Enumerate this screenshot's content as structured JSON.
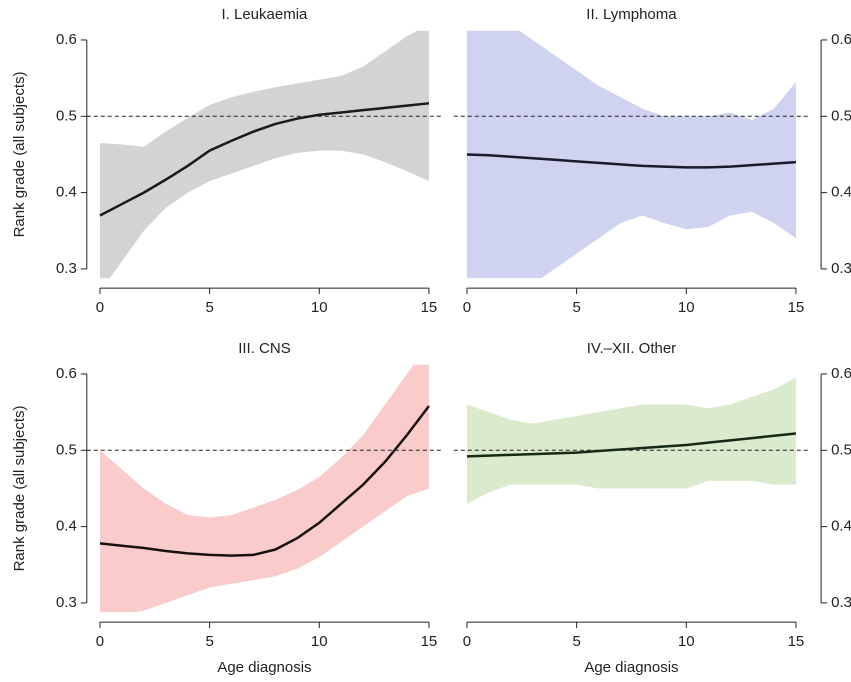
{
  "chart_data": [
    {
      "type": "line",
      "title": "I. Leukaemia",
      "ylabel": "Rank grade (all subjects)",
      "yaxis_side": "left",
      "x": [
        0,
        1,
        2,
        3,
        4,
        5,
        6,
        7,
        8,
        9,
        10,
        11,
        12,
        13,
        14,
        15
      ],
      "values": [
        0.37,
        0.385,
        0.4,
        0.417,
        0.435,
        0.455,
        0.468,
        0.48,
        0.49,
        0.497,
        0.502,
        0.505,
        0.508,
        0.511,
        0.514,
        0.517
      ],
      "upper": [
        0.465,
        0.463,
        0.46,
        0.48,
        0.498,
        0.515,
        0.525,
        0.532,
        0.538,
        0.543,
        0.548,
        0.553,
        0.565,
        0.585,
        0.605,
        0.62
      ],
      "lower": [
        0.27,
        0.31,
        0.35,
        0.38,
        0.4,
        0.415,
        0.425,
        0.435,
        0.445,
        0.452,
        0.455,
        0.455,
        0.45,
        0.44,
        0.428,
        0.415
      ],
      "color": "#1a1a1a",
      "band_color": "#d3d3d3",
      "hline": 0.5,
      "xlim": [
        -0.6,
        15.6
      ],
      "xticks": [
        0,
        5,
        10,
        15
      ],
      "ylim": [
        0.288,
        0.612
      ],
      "yticks": [
        0.3,
        0.4,
        0.5,
        0.6
      ]
    },
    {
      "type": "line",
      "title": "II. Lymphoma",
      "yaxis_side": "right",
      "x": [
        0,
        1,
        2,
        3,
        4,
        5,
        6,
        7,
        8,
        9,
        10,
        11,
        12,
        13,
        14,
        15
      ],
      "values": [
        0.45,
        0.449,
        0.447,
        0.445,
        0.443,
        0.441,
        0.439,
        0.437,
        0.435,
        0.434,
        0.433,
        0.433,
        0.434,
        0.436,
        0.438,
        0.44
      ],
      "upper": [
        0.62,
        0.63,
        0.62,
        0.6,
        0.58,
        0.56,
        0.54,
        0.525,
        0.51,
        0.5,
        0.5,
        0.5,
        0.505,
        0.495,
        0.51,
        0.545
      ],
      "lower": [
        0.28,
        0.27,
        0.26,
        0.28,
        0.3,
        0.32,
        0.34,
        0.36,
        0.37,
        0.36,
        0.352,
        0.355,
        0.37,
        0.375,
        0.36,
        0.34
      ],
      "color": "#1a1a2a",
      "band_color": "#cfd3ef",
      "hline": 0.5,
      "xlim": [
        -0.6,
        15.6
      ],
      "xticks": [
        0,
        5,
        10,
        15
      ],
      "ylim": [
        0.288,
        0.612
      ],
      "yticks": [
        0.3,
        0.4,
        0.5,
        0.6
      ]
    },
    {
      "type": "line",
      "title": "III. CNS",
      "xlabel": "Age diagnosis",
      "ylabel": "Rank grade (all subjects)",
      "yaxis_side": "left",
      "x": [
        0,
        1,
        2,
        3,
        4,
        5,
        6,
        7,
        8,
        9,
        10,
        11,
        12,
        13,
        14,
        15
      ],
      "values": [
        0.378,
        0.375,
        0.372,
        0.368,
        0.365,
        0.363,
        0.362,
        0.363,
        0.37,
        0.385,
        0.405,
        0.43,
        0.455,
        0.485,
        0.52,
        0.558
      ],
      "upper": [
        0.5,
        0.475,
        0.45,
        0.43,
        0.415,
        0.412,
        0.415,
        0.425,
        0.435,
        0.448,
        0.465,
        0.49,
        0.52,
        0.56,
        0.6,
        0.64
      ],
      "lower": [
        0.28,
        0.283,
        0.29,
        0.3,
        0.31,
        0.32,
        0.325,
        0.33,
        0.335,
        0.345,
        0.36,
        0.38,
        0.4,
        0.42,
        0.44,
        0.45
      ],
      "color": "#1a1010",
      "band_color": "#f9cbcb",
      "hline": 0.5,
      "xlim": [
        -0.6,
        15.6
      ],
      "xticks": [
        0,
        5,
        10,
        15
      ],
      "ylim": [
        0.288,
        0.612
      ],
      "yticks": [
        0.3,
        0.4,
        0.5,
        0.6
      ]
    },
    {
      "type": "line",
      "title": "IV.–XII. Other",
      "xlabel": "Age diagnosis",
      "yaxis_side": "right",
      "x": [
        0,
        1,
        2,
        3,
        4,
        5,
        6,
        7,
        8,
        9,
        10,
        11,
        12,
        13,
        14,
        15
      ],
      "values": [
        0.492,
        0.493,
        0.494,
        0.495,
        0.496,
        0.497,
        0.499,
        0.501,
        0.503,
        0.505,
        0.507,
        0.51,
        0.513,
        0.516,
        0.519,
        0.522
      ],
      "upper": [
        0.56,
        0.55,
        0.54,
        0.535,
        0.54,
        0.545,
        0.55,
        0.555,
        0.56,
        0.56,
        0.56,
        0.555,
        0.56,
        0.57,
        0.58,
        0.595
      ],
      "lower": [
        0.43,
        0.445,
        0.455,
        0.455,
        0.455,
        0.455,
        0.45,
        0.45,
        0.45,
        0.45,
        0.45,
        0.46,
        0.46,
        0.46,
        0.455,
        0.455
      ],
      "color": "#142a14",
      "band_color": "#dbe9cd",
      "hline": 0.5,
      "xlim": [
        -0.6,
        15.6
      ],
      "xticks": [
        0,
        5,
        10,
        15
      ],
      "ylim": [
        0.288,
        0.612
      ],
      "yticks": [
        0.3,
        0.4,
        0.5,
        0.6
      ]
    }
  ]
}
